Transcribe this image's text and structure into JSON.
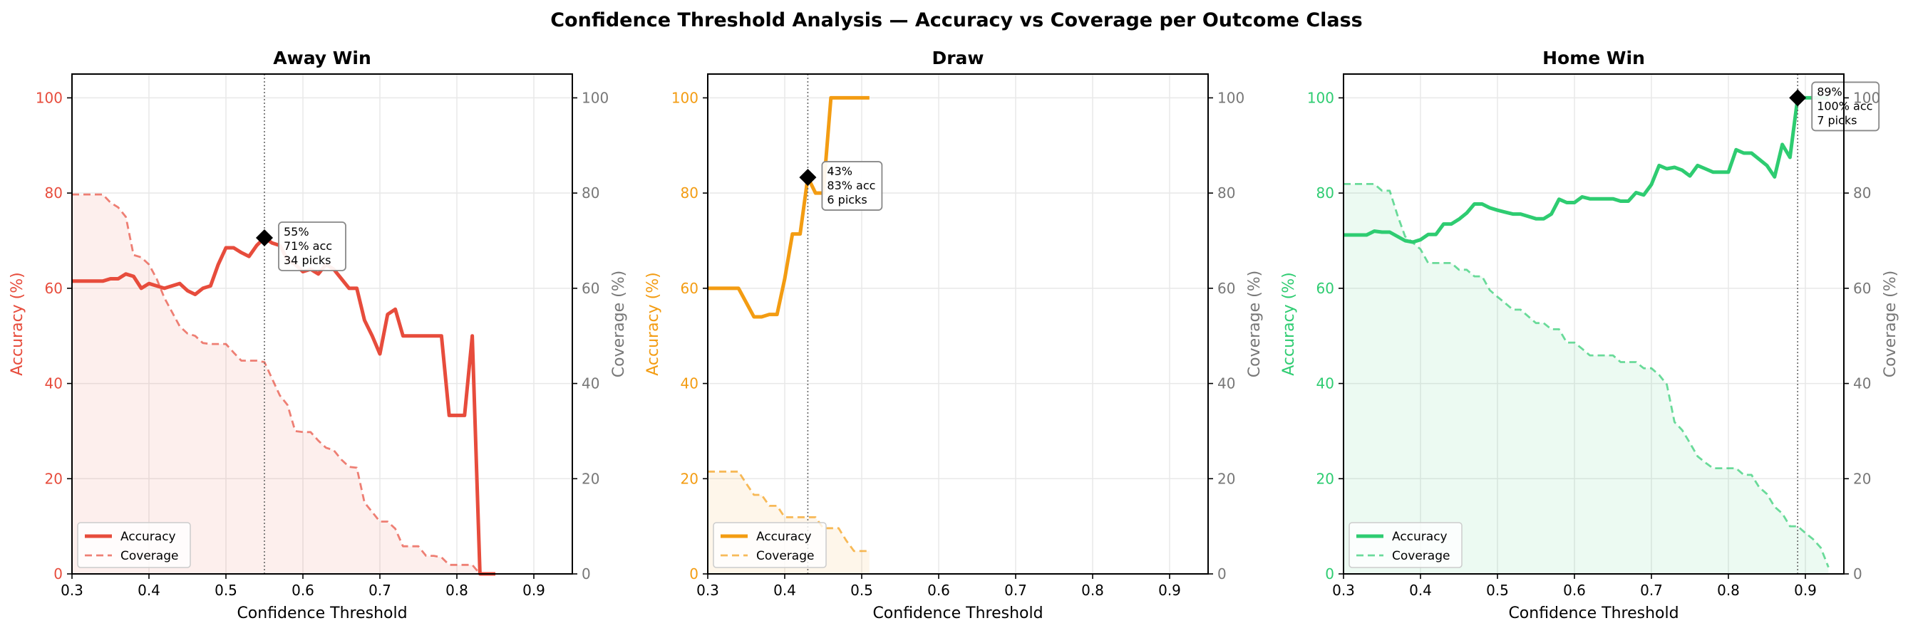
{
  "suptitle": "Confidence Threshold Analysis — Accuracy vs Coverage per Outcome Class",
  "chart_data": [
    {
      "type": "line",
      "title": "Away Win",
      "xlabel": "Confidence Threshold",
      "ylabel": "Accuracy (%)",
      "ylabel_right": "Coverage (%)",
      "color": "#e74c3c",
      "xlim": [
        0.3,
        0.95
      ],
      "ylim": [
        0,
        105
      ],
      "ylim_right": [
        0,
        105
      ],
      "grid": true,
      "legend_position": "lower-left",
      "legend": [
        "Accuracy",
        "Coverage"
      ],
      "xticks": [
        "0.3",
        "0.4",
        "0.5",
        "0.6",
        "0.7",
        "0.8",
        "0.9"
      ],
      "yticks": [
        "0",
        "20",
        "40",
        "60",
        "80",
        "100"
      ],
      "x": [
        0.3,
        0.31,
        0.32,
        0.33,
        0.34,
        0.35,
        0.36,
        0.37,
        0.38,
        0.39,
        0.4,
        0.41,
        0.42,
        0.43,
        0.44,
        0.45,
        0.46,
        0.47,
        0.48,
        0.49,
        0.5,
        0.51,
        0.52,
        0.53,
        0.54,
        0.55,
        0.56,
        0.57,
        0.58,
        0.59,
        0.6,
        0.61,
        0.62,
        0.63,
        0.64,
        0.65,
        0.66,
        0.67,
        0.68,
        0.69,
        0.7,
        0.71,
        0.72,
        0.73,
        0.74,
        0.75,
        0.76,
        0.77,
        0.78,
        0.79,
        0.8,
        0.81,
        0.82,
        0.83,
        0.84,
        0.85
      ],
      "series": [
        {
          "name": "Accuracy",
          "axis": "left",
          "style": "solid",
          "values": [
            61.5,
            61.5,
            61.5,
            61.5,
            61.5,
            62,
            62,
            63,
            62.5,
            60,
            61,
            60.5,
            60,
            60.5,
            61,
            59.5,
            58.7,
            60,
            60.5,
            65,
            68.5,
            68.5,
            67.5,
            66.7,
            69,
            70.6,
            69.5,
            69,
            66,
            65,
            63.5,
            64,
            63,
            65,
            64,
            62,
            60,
            60,
            53.3,
            50,
            46.2,
            54.5,
            55.6,
            50,
            50,
            50,
            50,
            50,
            50,
            33.3,
            33.3,
            33.3,
            50,
            0,
            0,
            0
          ]
        },
        {
          "name": "Coverage",
          "axis": "right",
          "style": "dashed",
          "filled": true,
          "values": [
            79.7,
            79.7,
            79.7,
            79.7,
            79.7,
            78,
            77,
            75,
            67,
            66.5,
            65,
            62,
            58,
            55,
            52,
            50.5,
            50,
            48.5,
            48.3,
            48.3,
            48.3,
            46.5,
            44.8,
            44.8,
            44.8,
            44.5,
            41,
            37.5,
            35.5,
            30,
            29.8,
            29.8,
            28,
            26.5,
            26,
            24,
            22.5,
            22.3,
            15,
            13,
            11,
            11,
            9.5,
            5.8,
            5.8,
            5.8,
            3.8,
            3.8,
            3.5,
            1.9,
            1.9,
            1.9,
            1.9,
            0,
            0,
            0
          ]
        }
      ],
      "annotation": {
        "x": 0.55,
        "y": 70.6,
        "lines": [
          "55%",
          "71% acc",
          "34 picks"
        ]
      }
    },
    {
      "type": "line",
      "title": "Draw",
      "xlabel": "Confidence Threshold",
      "ylabel": "Accuracy (%)",
      "ylabel_right": "Coverage (%)",
      "color": "#f39c12",
      "xlim": [
        0.3,
        0.95
      ],
      "ylim": [
        0,
        105
      ],
      "ylim_right": [
        0,
        105
      ],
      "grid": true,
      "legend_position": "lower-left",
      "legend": [
        "Accuracy",
        "Coverage"
      ],
      "xticks": [
        "0.3",
        "0.4",
        "0.5",
        "0.6",
        "0.7",
        "0.8",
        "0.9"
      ],
      "yticks": [
        "0",
        "20",
        "40",
        "60",
        "80",
        "100"
      ],
      "x": [
        0.3,
        0.31,
        0.32,
        0.33,
        0.34,
        0.35,
        0.36,
        0.37,
        0.38,
        0.39,
        0.4,
        0.41,
        0.42,
        0.43,
        0.44,
        0.45,
        0.46,
        0.47,
        0.48,
        0.49,
        0.5,
        0.51
      ],
      "series": [
        {
          "name": "Accuracy",
          "axis": "left",
          "style": "solid",
          "values": [
            60,
            60,
            60,
            60,
            60,
            57,
            54,
            54,
            54.5,
            54.5,
            62,
            71.4,
            71.4,
            83.3,
            80,
            80,
            100,
            100,
            100,
            100,
            100,
            100
          ]
        },
        {
          "name": "Coverage",
          "axis": "right",
          "style": "dashed",
          "filled": true,
          "values": [
            21.5,
            21.5,
            21.5,
            21.5,
            21.5,
            19,
            16.6,
            16.6,
            14.3,
            14.3,
            11.9,
            11.9,
            11.9,
            11.9,
            11.9,
            9.6,
            9.6,
            9.6,
            7,
            4.8,
            4.8,
            4.8
          ]
        }
      ],
      "annotation": {
        "x": 0.43,
        "y": 83.3,
        "lines": [
          "43%",
          "83% acc",
          "6 picks"
        ]
      }
    },
    {
      "type": "line",
      "title": "Home Win",
      "xlabel": "Confidence Threshold",
      "ylabel": "Accuracy (%)",
      "ylabel_right": "Coverage (%)",
      "color": "#2ecc71",
      "xlim": [
        0.3,
        0.95
      ],
      "ylim": [
        0,
        105
      ],
      "ylim_right": [
        0,
        105
      ],
      "grid": true,
      "legend_position": "lower-left",
      "legend": [
        "Accuracy",
        "Coverage"
      ],
      "xticks": [
        "0.3",
        "0.4",
        "0.5",
        "0.6",
        "0.7",
        "0.8",
        "0.9"
      ],
      "yticks": [
        "0",
        "20",
        "40",
        "60",
        "80",
        "100"
      ],
      "x": [
        0.3,
        0.31,
        0.32,
        0.33,
        0.34,
        0.35,
        0.36,
        0.37,
        0.38,
        0.39,
        0.4,
        0.41,
        0.42,
        0.43,
        0.44,
        0.45,
        0.46,
        0.47,
        0.48,
        0.49,
        0.5,
        0.51,
        0.52,
        0.53,
        0.54,
        0.55,
        0.56,
        0.57,
        0.58,
        0.59,
        0.6,
        0.61,
        0.62,
        0.63,
        0.64,
        0.65,
        0.66,
        0.67,
        0.68,
        0.69,
        0.7,
        0.71,
        0.72,
        0.73,
        0.74,
        0.75,
        0.76,
        0.77,
        0.78,
        0.79,
        0.8,
        0.81,
        0.82,
        0.83,
        0.84,
        0.85,
        0.86,
        0.87,
        0.88,
        0.89,
        0.9,
        0.91,
        0.92,
        0.93
      ],
      "series": [
        {
          "name": "Accuracy",
          "axis": "left",
          "style": "solid",
          "values": [
            71.2,
            71.2,
            71.2,
            71.2,
            72,
            71.8,
            71.8,
            70.9,
            70,
            69.7,
            70.2,
            71.3,
            71.3,
            73.5,
            73.5,
            74.5,
            75.8,
            77.7,
            77.7,
            76.9,
            76.4,
            76,
            75.6,
            75.6,
            75.1,
            74.6,
            74.6,
            75.6,
            78.7,
            78,
            78,
            79.2,
            78.8,
            78.8,
            78.8,
            78.8,
            78.3,
            78.3,
            80.1,
            79.6,
            81.8,
            85.8,
            85.1,
            85.4,
            84.8,
            83.6,
            85.8,
            85.1,
            84.4,
            84.4,
            84.4,
            89.1,
            88.4,
            88.4,
            87.1,
            85.8,
            83.4,
            90.2,
            87.5,
            100,
            100,
            100,
            100,
            100
          ]
        },
        {
          "name": "Coverage",
          "axis": "right",
          "style": "dashed",
          "filled": true,
          "values": [
            81.9,
            81.9,
            81.9,
            81.9,
            81.9,
            80.5,
            80.5,
            75.4,
            70.9,
            69.6,
            68.2,
            65.3,
            65.3,
            65.3,
            65.3,
            63.9,
            63.9,
            62.5,
            62.5,
            59.6,
            58.2,
            56.9,
            55.5,
            55.5,
            54.1,
            52.7,
            52.7,
            51.4,
            51.4,
            48.6,
            48.6,
            47.3,
            45.9,
            45.9,
            45.9,
            45.9,
            44.5,
            44.5,
            44.5,
            43.2,
            43.2,
            41.8,
            39.8,
            31.9,
            30.2,
            27.5,
            24.7,
            23.4,
            22.2,
            22.2,
            22.2,
            22.2,
            20.8,
            20.8,
            18.2,
            16.8,
            14.1,
            12.7,
            10,
            10,
            8.6,
            7.3,
            5.5,
            1.4
          ]
        }
      ],
      "annotation": {
        "x": 0.89,
        "y": 100,
        "lines": [
          "89%",
          "100% acc",
          "7 picks"
        ]
      }
    }
  ]
}
